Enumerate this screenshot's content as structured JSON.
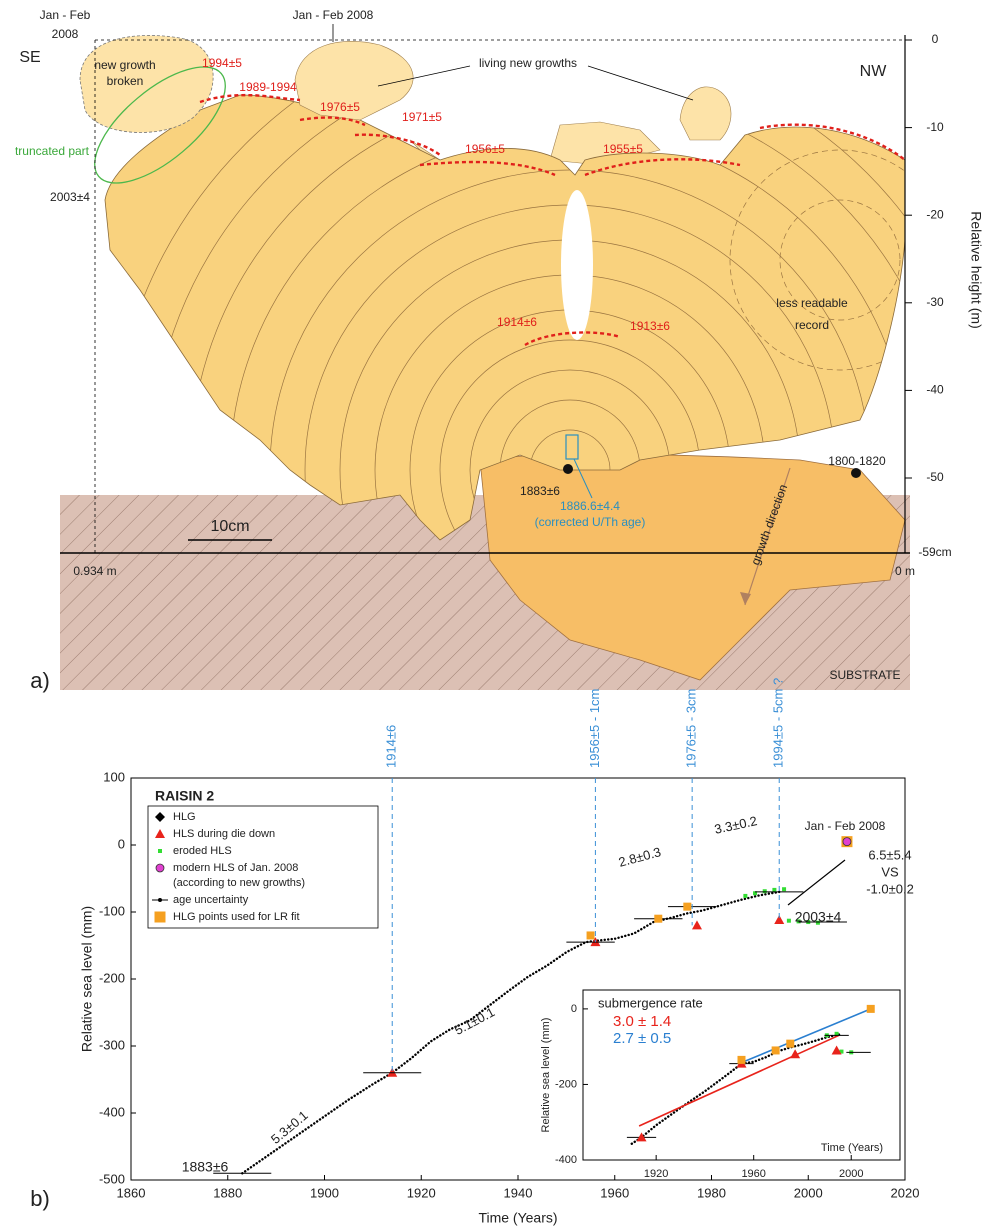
{
  "diagram": {
    "panel_label": "a)",
    "labels": [
      "Jan - Feb",
      "2008",
      "Jan - Feb 2008",
      "SE",
      "NW",
      "new growth",
      "broken",
      "1994±5",
      "1989-1994",
      "1976±5",
      "1971±5",
      "1956±5",
      "1955±5",
      "living new growths",
      "truncated part",
      "2003±4",
      "1914±6",
      "1913±6",
      "less readable",
      "record",
      "1800-1820",
      "1883±6",
      "1886.6±4.4",
      "(corrected U/Th age)",
      "10cm",
      "0.934 m",
      "0 m",
      "growth direction",
      "SUBSTRATE"
    ],
    "axis": {
      "title": "Relative height (m)",
      "ticks": [
        0,
        -10,
        -20,
        -30,
        -40,
        -50
      ],
      "bottom_label": "-59cm"
    }
  },
  "chart_data": [
    {
      "type": "scatter",
      "title": "RAISIN 2",
      "panel_label": "b)",
      "xlabel": "Time (Years)",
      "ylabel": "Relative sea level (mm)",
      "xlim": [
        1860,
        2020
      ],
      "ylim": [
        -500,
        100
      ],
      "xticks": [
        1860,
        1880,
        1900,
        1920,
        1940,
        1960,
        1980,
        2000,
        2020
      ],
      "yticks": [
        -500,
        -400,
        -300,
        -200,
        -100,
        0,
        100
      ],
      "legend": "upper left",
      "series": [
        {
          "name": "HLG",
          "color": "#000000",
          "marker": "dotted-line",
          "legend_marker": "diamond",
          "x": [
            1883,
            1886,
            1890,
            1895,
            1900,
            1905,
            1910,
            1914,
            1918,
            1922,
            1926,
            1930,
            1934,
            1938,
            1942,
            1946,
            1950,
            1954,
            1956,
            1960,
            1964,
            1968,
            1972,
            1975,
            1978,
            1982,
            1986,
            1990,
            1994
          ],
          "values": [
            -490,
            -475,
            -455,
            -430,
            -405,
            -380,
            -357,
            -340,
            -318,
            -293,
            -275,
            -262,
            -240,
            -218,
            -197,
            -180,
            -160,
            -145,
            -143,
            -140,
            -132,
            -115,
            -108,
            -102,
            -98,
            -90,
            -82,
            -75,
            -70
          ]
        },
        {
          "name": "HLS during die down",
          "color": "#e8231b",
          "marker": "triangle",
          "x": [
            1914,
            1956,
            1977,
            1994
          ],
          "values": [
            -340,
            -145,
            -120,
            -112
          ]
        },
        {
          "name": "eroded HLS",
          "color": "#33dd33",
          "marker": "small-square",
          "x": [
            1987,
            1989,
            1991,
            1993,
            1995,
            1996,
            1998,
            2000,
            2002
          ],
          "values": [
            -76,
            -72,
            -69,
            -67,
            -66,
            -113,
            -114,
            -115,
            -116
          ]
        },
        {
          "name": "modern HLS of Jan. 2008",
          "name_note": "(according to new growths)",
          "color": "#e040d0",
          "marker": "circle",
          "x": [
            2008
          ],
          "values": [
            5
          ]
        },
        {
          "name": "age uncertainty",
          "color": "#000000",
          "marker": "errorbar",
          "x": [
            1883,
            1914,
            1955,
            1969,
            1976,
            1994,
            2003
          ],
          "values": [
            -490,
            -340,
            -145,
            -110,
            -92,
            -70,
            -115
          ],
          "xerr": [
            6,
            6,
            5,
            5,
            5,
            5,
            5
          ]
        },
        {
          "name": "HLG points used for LR fit",
          "color": "#f5a020",
          "marker": "square",
          "x": [
            1955,
            1969,
            1975,
            2008
          ],
          "values": [
            -135,
            -110,
            -92,
            5
          ]
        }
      ],
      "vlines": [
        {
          "x": 1914,
          "label": "1914±6"
        },
        {
          "x": 1956,
          "label": "1956±5 - 1cm"
        },
        {
          "x": 1976,
          "label": "1976±5 - 3cm"
        },
        {
          "x": 1994,
          "label": "1994±5 - 5cm ?"
        }
      ],
      "vline_color": "#3a8fd6",
      "annotations": [
        "5.3±0.1",
        "5.1±0.1",
        "2.8±0.3",
        "3.3±0.2",
        "1883±6",
        "2003±4",
        "6.5±5.4",
        "VS",
        "-1.0±0.2",
        "Jan - Feb 2008"
      ]
    },
    {
      "type": "scatter",
      "title": "submergence rate",
      "xlabel": "Time (Years)",
      "ylabel": "Relative sea level (mm)",
      "xlim": [
        1890,
        2020
      ],
      "ylim": [
        -400,
        50
      ],
      "xticks": [
        1920,
        1960,
        2000
      ],
      "yticks": [
        -400,
        -200,
        0
      ],
      "rates": [
        {
          "label": "3.0 ± 1.4",
          "color": "#e8231b"
        },
        {
          "label": "2.7 ± 0.5",
          "color": "#2a7fd0"
        }
      ],
      "series": [
        {
          "color": "#000000",
          "marker": "dotted-line",
          "x": [
            1910,
            1914,
            1920,
            1930,
            1940,
            1950,
            1955,
            1960,
            1965,
            1970,
            1975,
            1980,
            1985,
            1990,
            1995
          ],
          "values": [
            -357,
            -340,
            -308,
            -262,
            -218,
            -170,
            -145,
            -140,
            -128,
            -112,
            -102,
            -94,
            -85,
            -75,
            -68
          ]
        },
        {
          "color": "#e8231b",
          "marker": "line",
          "x": [
            1913,
            1995
          ],
          "values": [
            -310,
            -70
          ]
        },
        {
          "color": "#2a7fd0",
          "marker": "line",
          "x": [
            1954,
            2008
          ],
          "values": [
            -145,
            0
          ]
        },
        {
          "color": "#33dd33",
          "marker": "small-square",
          "x": [
            1990,
            1994,
            1996,
            2000
          ],
          "values": [
            -70,
            -66,
            -113,
            -115
          ]
        },
        {
          "color": "#000000",
          "marker": "errorbar",
          "x": [
            1914,
            1955,
            1994,
            2003
          ],
          "values": [
            -340,
            -145,
            -70,
            -115
          ],
          "xerr": [
            6,
            5,
            5,
            5
          ]
        },
        {
          "color": "#e8231b",
          "marker": "triangle",
          "x": [
            1914,
            1955,
            1977,
            1994
          ],
          "values": [
            -340,
            -145,
            -120,
            -110
          ]
        },
        {
          "color": "#f5a020",
          "marker": "square",
          "x": [
            1955,
            1969,
            1975,
            2008
          ],
          "values": [
            -135,
            -110,
            -92,
            0
          ]
        }
      ]
    }
  ]
}
